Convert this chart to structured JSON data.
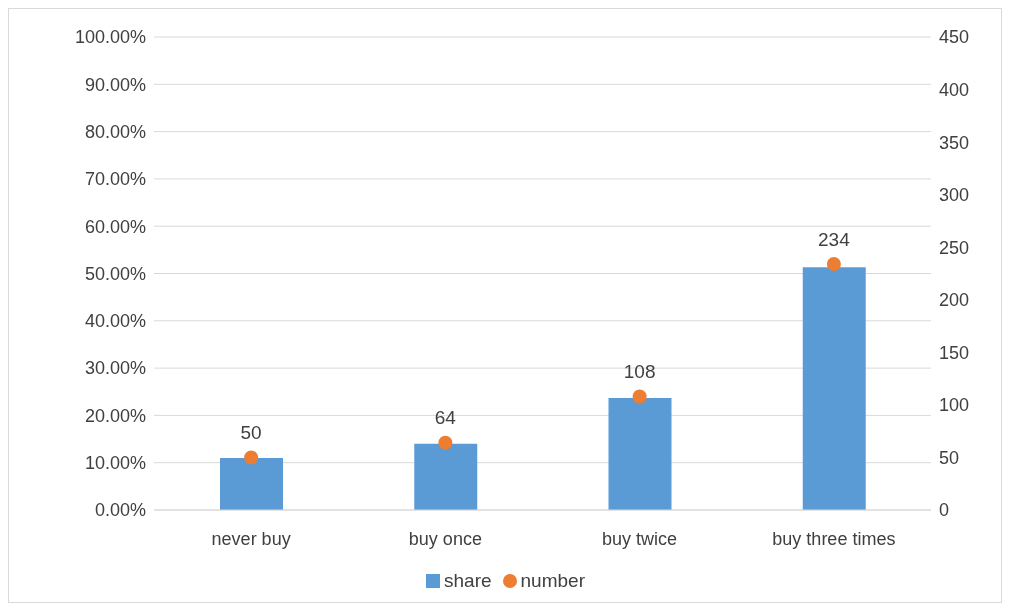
{
  "chart_data": {
    "type": "bar",
    "categories": [
      "never buy",
      "buy once",
      "buy twice",
      "buy three times"
    ],
    "series": [
      {
        "name": "share",
        "color": "#5b9bd5",
        "values": [
          11.0,
          14.0,
          23.7,
          51.3
        ]
      },
      {
        "name": "number",
        "type": "scatter",
        "axis": "y2",
        "color": "#ed7d31",
        "values": [
          50,
          64,
          108,
          234
        ],
        "value_labels": [
          "50",
          "64",
          "108",
          "234"
        ]
      }
    ],
    "ylim": [
      0,
      100
    ],
    "yticks": [
      {
        "value": 0,
        "label": "0.00%"
      },
      {
        "value": 10,
        "label": "10.00%"
      },
      {
        "value": 20,
        "label": "20.00%"
      },
      {
        "value": 30,
        "label": "30.00%"
      },
      {
        "value": 40,
        "label": "40.00%"
      },
      {
        "value": 50,
        "label": "50.00%"
      },
      {
        "value": 60,
        "label": "60.00%"
      },
      {
        "value": 70,
        "label": "70.00%"
      },
      {
        "value": 80,
        "label": "80.00%"
      },
      {
        "value": 90,
        "label": "90.00%"
      },
      {
        "value": 100,
        "label": "100.00%"
      }
    ],
    "y2lim": [
      0,
      450
    ],
    "y2ticks": [
      0,
      50,
      100,
      150,
      200,
      250,
      300,
      350,
      400,
      450
    ],
    "grid": "y",
    "legend": "bottom",
    "marker": "circle"
  }
}
